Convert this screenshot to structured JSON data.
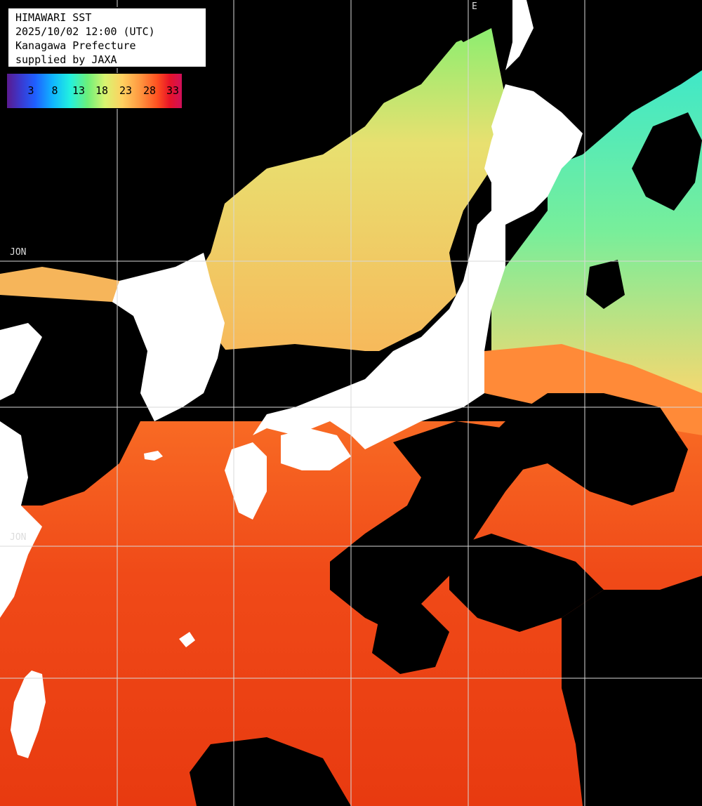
{
  "header": {
    "line1": "HIMAWARI SST",
    "line2": "2025/10/02 12:00 (UTC)",
    "line3": "Kanagawa Prefecture",
    "line4": "supplied by JAXA"
  },
  "legend": {
    "labels": [
      "3",
      "8",
      "13",
      "18",
      "23",
      "28",
      "33"
    ]
  },
  "grid_labels": {
    "top_mark": "E",
    "left_upper": "JON",
    "left_lower": "JON"
  },
  "colors": {
    "land": "#ffffff",
    "no_data": "#000000",
    "grid": "#d8d8d8",
    "cold": "#3fe0c0",
    "cool": "#b8f070",
    "mild": "#f7c060",
    "warm": "#ff8c3a",
    "hot": "#f03a10"
  }
}
